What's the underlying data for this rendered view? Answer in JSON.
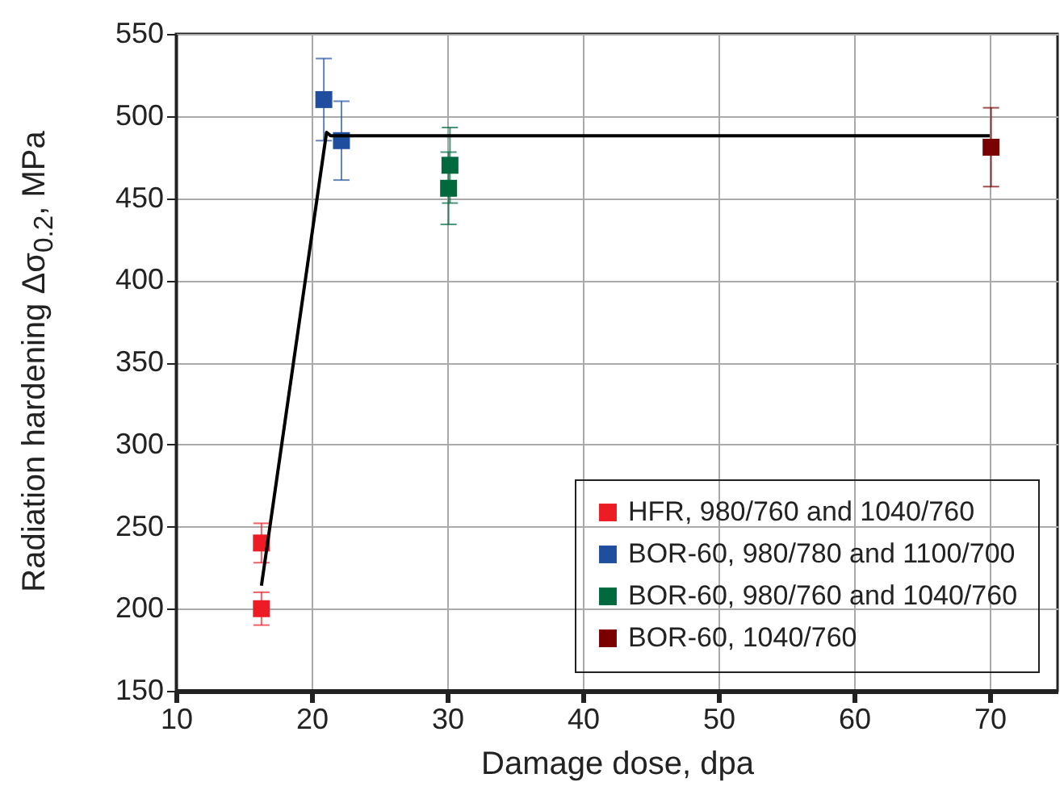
{
  "chart_data": {
    "type": "scatter",
    "xlabel": "Damage dose, dpa",
    "ylabel": "Radiation hardening Δσ$_{0.2}$, MPa",
    "xlim": [
      10,
      75
    ],
    "xticks": [
      10,
      20,
      30,
      40,
      50,
      60,
      70
    ],
    "ylim": [
      150,
      550
    ],
    "yticks": [
      150,
      200,
      250,
      300,
      350,
      400,
      450,
      500,
      550
    ],
    "grid": true,
    "legend": "bottom right",
    "marker": "square",
    "series": [
      {
        "name": "HFR, 980/760 and 1040/760",
        "color": "#ed1c24",
        "x": [
          16.3,
          16.3
        ],
        "values": [
          240,
          200
        ],
        "errors": [
          12,
          10
        ]
      },
      {
        "name": "BOR-60, 980/780 and 1100/700",
        "color": "#1f4e9e",
        "x": [
          20.9,
          22.2
        ],
        "values": [
          510,
          485
        ],
        "errors": [
          25,
          24
        ]
      },
      {
        "name": "BOR-60, 980/760 and 1040/760",
        "color": "#00693e",
        "x": [
          30.2,
          30.1
        ],
        "values": [
          470,
          456
        ],
        "errors": [
          23,
          22
        ]
      },
      {
        "name": "BOR-60, 1040/760",
        "color": "#7a0000",
        "x": [
          70.1
        ],
        "values": [
          481
        ],
        "errors": [
          24
        ]
      },
      {
        "type": "line",
        "marker": "none",
        "color": "#000000",
        "x": [
          16.3,
          21.1,
          21.4,
          70
        ],
        "values": [
          214,
          490,
          488,
          488
        ]
      }
    ]
  }
}
